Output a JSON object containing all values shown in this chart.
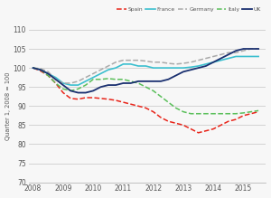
{
  "ylabel": "Quarter 1, 2008 = 100",
  "ylim": [
    70,
    110
  ],
  "yticks": [
    70,
    75,
    80,
    85,
    90,
    95,
    100,
    105,
    110
  ],
  "xlim": [
    2007.85,
    2015.75
  ],
  "xticks": [
    2008,
    2009,
    2010,
    2011,
    2012,
    2013,
    2014,
    2015
  ],
  "bg_color": "#f7f7f7",
  "grid_color": "#cccccc",
  "colors": {
    "Spain": "#e8251a",
    "France": "#3bbfcf",
    "Germany": "#aaaaaa",
    "Italy": "#5abf5a",
    "UK": "#1a3070"
  },
  "linestyles": {
    "Spain": "--",
    "France": "-",
    "Germany": "--",
    "Italy": "--",
    "UK": "-"
  },
  "linewidths": {
    "Spain": 1.1,
    "France": 1.2,
    "Germany": 1.1,
    "Italy": 1.1,
    "UK": 1.3
  },
  "quarters": [
    2008.0,
    2008.25,
    2008.5,
    2008.75,
    2009.0,
    2009.25,
    2009.5,
    2009.75,
    2010.0,
    2010.25,
    2010.5,
    2010.75,
    2011.0,
    2011.25,
    2011.5,
    2011.75,
    2012.0,
    2012.25,
    2012.5,
    2012.75,
    2013.0,
    2013.25,
    2013.5,
    2013.75,
    2014.0,
    2014.25,
    2014.5,
    2014.75,
    2015.0,
    2015.25,
    2015.5
  ],
  "Spain": [
    100,
    99.2,
    98.0,
    96.0,
    93.5,
    92.0,
    91.8,
    92.2,
    92.2,
    92.0,
    91.8,
    91.5,
    91.0,
    90.5,
    90.0,
    89.5,
    88.5,
    87.0,
    86.0,
    85.5,
    85.0,
    84.0,
    83.0,
    83.5,
    84.0,
    85.0,
    86.0,
    86.5,
    87.5,
    88.0,
    88.5
  ],
  "France": [
    100,
    99.5,
    98.5,
    97.5,
    96.0,
    95.5,
    95.5,
    96.5,
    97.5,
    98.5,
    99.5,
    100.0,
    101.0,
    101.0,
    100.5,
    100.5,
    100.0,
    100.0,
    100.0,
    100.0,
    100.0,
    100.2,
    100.5,
    101.0,
    101.5,
    102.0,
    102.5,
    103.0,
    103.0,
    103.0,
    103.0
  ],
  "Germany": [
    100,
    99.8,
    99.0,
    97.0,
    96.0,
    96.0,
    96.5,
    97.5,
    98.5,
    99.5,
    100.5,
    101.5,
    102.0,
    102.0,
    102.0,
    101.8,
    101.5,
    101.5,
    101.2,
    101.0,
    101.2,
    101.5,
    102.0,
    102.5,
    103.0,
    103.5,
    104.0,
    104.0,
    104.5,
    105.0,
    105.0
  ],
  "Italy": [
    100,
    99.5,
    98.0,
    96.0,
    94.5,
    94.0,
    94.5,
    95.5,
    97.0,
    97.0,
    97.2,
    97.0,
    97.0,
    96.5,
    96.0,
    95.0,
    94.0,
    92.5,
    91.0,
    89.5,
    88.5,
    88.0,
    88.0,
    88.0,
    88.0,
    88.0,
    88.0,
    88.0,
    88.2,
    88.5,
    88.8
  ],
  "UK": [
    100,
    99.5,
    98.5,
    97.0,
    95.5,
    94.0,
    93.5,
    93.5,
    94.0,
    95.0,
    95.5,
    95.5,
    96.0,
    96.0,
    96.5,
    96.5,
    96.5,
    96.5,
    97.0,
    98.0,
    99.0,
    99.5,
    100.0,
    100.5,
    101.5,
    102.5,
    103.5,
    104.5,
    105.0,
    105.0,
    105.0
  ]
}
